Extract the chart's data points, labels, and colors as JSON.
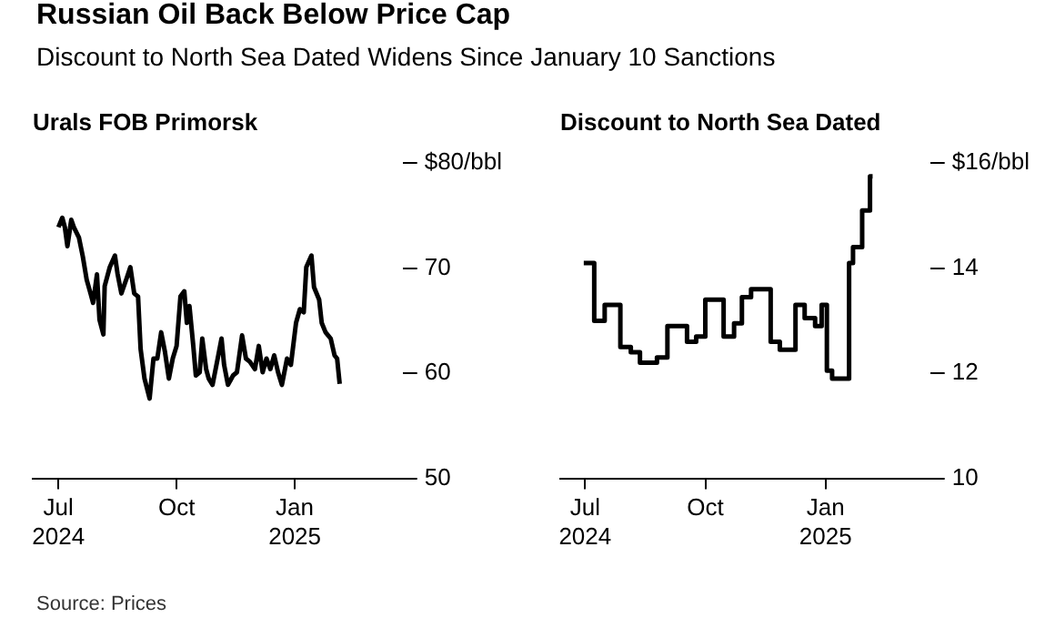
{
  "chart_data": [
    {
      "type": "other",
      "title": "Russian Oil Back Below Price Cap",
      "subtitle": "Discount to North Sea Dated Widens Since January 10 Sanctions",
      "annotations": [
        "Source: Prices"
      ]
    },
    {
      "type": "line",
      "title": "Urals FOB Primorsk",
      "xlim": [
        "2024-06-11",
        "2025-03-26"
      ],
      "xticks": [
        {
          "value": "2024-07-01",
          "label": "Jul 2024"
        },
        {
          "value": "2024-10-01",
          "label": "Oct"
        },
        {
          "value": "2025-01-01",
          "label": "Jan 2025"
        }
      ],
      "ylim": [
        50,
        80
      ],
      "yticks": [
        50,
        60,
        70,
        {
          "value": 80,
          "label": "$80/bbl"
        }
      ],
      "grid": false,
      "series": [
        {
          "color": "#000000",
          "x": [
            "2024-07-01",
            "2024-07-04",
            "2024-07-06",
            "2024-07-08",
            "2024-07-11",
            "2024-07-13",
            "2024-07-17",
            "2024-07-20",
            "2024-07-23",
            "2024-07-26",
            "2024-07-28",
            "2024-07-31",
            "2024-08-02",
            "2024-08-05",
            "2024-08-06",
            "2024-08-10",
            "2024-08-14",
            "2024-08-16",
            "2024-08-19",
            "2024-08-23",
            "2024-08-26",
            "2024-08-29",
            "2024-09-01",
            "2024-09-03",
            "2024-09-06",
            "2024-09-10",
            "2024-09-13",
            "2024-09-16",
            "2024-09-19",
            "2024-09-22",
            "2024-09-25",
            "2024-09-28",
            "2024-10-01",
            "2024-10-04",
            "2024-10-07",
            "2024-10-09",
            "2024-10-11",
            "2024-10-14",
            "2024-10-16",
            "2024-10-19",
            "2024-10-21",
            "2024-10-24",
            "2024-10-26",
            "2024-10-29",
            "2024-11-02",
            "2024-11-05",
            "2024-11-07",
            "2024-11-10",
            "2024-11-14",
            "2024-11-17",
            "2024-11-21",
            "2024-11-24",
            "2024-11-27",
            "2024-12-01",
            "2024-12-04",
            "2024-12-07",
            "2024-12-10",
            "2024-12-13",
            "2024-12-16",
            "2024-12-19",
            "2024-12-22",
            "2024-12-26",
            "2024-12-29",
            "2025-01-02",
            "2025-01-05",
            "2025-01-08",
            "2025-01-10",
            "2025-01-14",
            "2025-01-16",
            "2025-01-20",
            "2025-01-22",
            "2025-01-25",
            "2025-01-29",
            "2025-02-01",
            "2025-02-03",
            "2025-02-05"
          ],
          "values": [
            73.9,
            74.8,
            73.9,
            72.1,
            74.6,
            73.9,
            72.9,
            71.1,
            68.9,
            67.6,
            66.7,
            69.4,
            65.1,
            63.7,
            68.3,
            70.1,
            71.2,
            69.5,
            67.6,
            69.0,
            70.1,
            67.6,
            67.3,
            62.3,
            59.5,
            57.6,
            61.4,
            61.4,
            63.9,
            62.0,
            59.5,
            61.4,
            62.6,
            67.3,
            67.8,
            64.8,
            66.4,
            62.6,
            59.8,
            60.1,
            63.3,
            60.4,
            59.5,
            58.9,
            61.4,
            63.3,
            60.8,
            58.9,
            59.8,
            60.1,
            63.6,
            61.4,
            61.1,
            60.4,
            62.6,
            60.1,
            61.4,
            60.4,
            61.7,
            60.1,
            58.9,
            61.4,
            60.8,
            64.8,
            66.1,
            65.8,
            70.1,
            71.2,
            68.2,
            67.0,
            64.8,
            63.9,
            63.3,
            61.7,
            61.4,
            59.0
          ]
        }
      ]
    },
    {
      "type": "step",
      "title": "Discount to North Sea Dated",
      "xlim": [
        "2024-06-12",
        "2025-03-22"
      ],
      "xticks": [
        {
          "value": "2024-07-01",
          "label": "Jul 2024"
        },
        {
          "value": "2024-10-01",
          "label": "Oct"
        },
        {
          "value": "2025-01-01",
          "label": "Jan 2025"
        }
      ],
      "ylim": [
        10,
        16
      ],
      "yticks": [
        10,
        12,
        14,
        {
          "value": 16,
          "label": "$16/bbl"
        }
      ],
      "grid": false,
      "series": [
        {
          "color": "#000000",
          "x": [
            "2024-06-30",
            "2024-07-08",
            "2024-07-16",
            "2024-07-28",
            "2024-08-05",
            "2024-08-12",
            "2024-08-25",
            "2024-09-02",
            "2024-09-17",
            "2024-09-24",
            "2024-10-01",
            "2024-10-15",
            "2024-10-23",
            "2024-10-29",
            "2024-11-05",
            "2024-11-20",
            "2024-11-27",
            "2024-12-09",
            "2024-12-16",
            "2024-12-24",
            "2024-12-29",
            "2025-01-02",
            "2025-01-06",
            "2025-01-19",
            "2025-01-22",
            "2025-01-29",
            "2025-02-04",
            "2025-02-06"
          ],
          "values": [
            14.1,
            13.0,
            13.3,
            12.5,
            12.4,
            12.2,
            12.3,
            12.9,
            12.6,
            12.7,
            13.4,
            12.7,
            12.95,
            13.45,
            13.6,
            12.6,
            12.45,
            13.3,
            13.05,
            12.9,
            13.3,
            12.05,
            11.9,
            14.1,
            14.4,
            15.1,
            15.75,
            15.75
          ]
        }
      ]
    }
  ]
}
